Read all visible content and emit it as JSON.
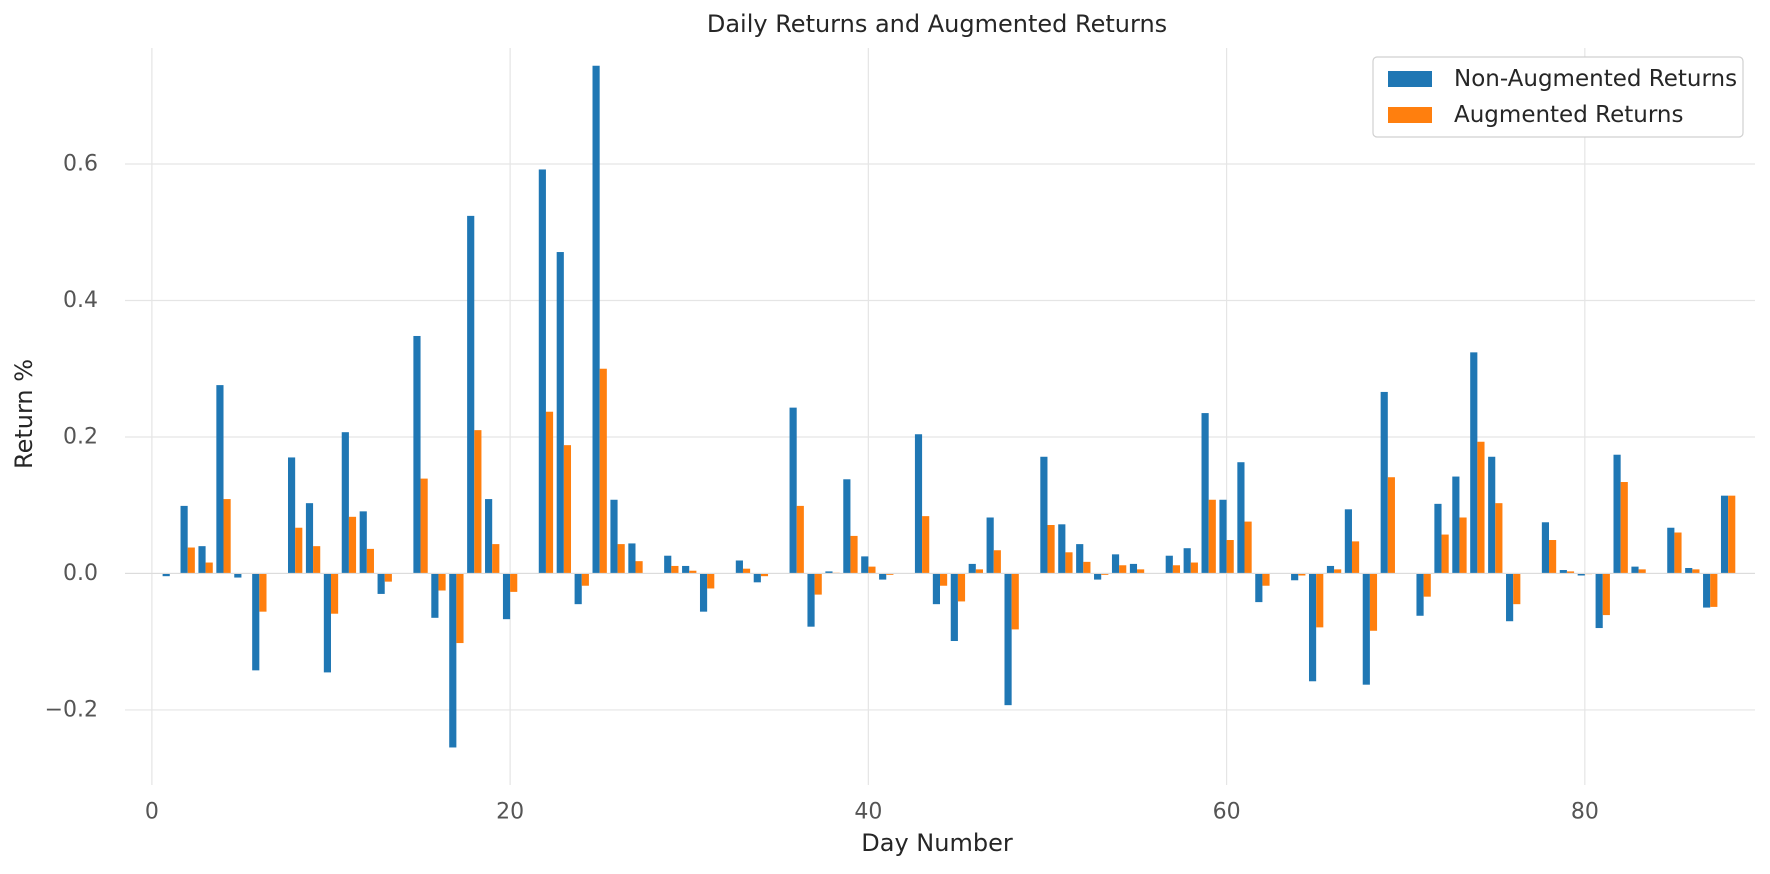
{
  "chart_data": {
    "type": "bar",
    "title": "Daily Returns and Augmented Returns",
    "xlabel": "Day Number",
    "ylabel": "Return %",
    "xlim": [
      -1.5,
      89.5
    ],
    "ylim": [
      -0.31,
      0.77
    ],
    "xticks": [
      0,
      20,
      40,
      60,
      80
    ],
    "yticks": [
      -0.2,
      0.0,
      0.2,
      0.4,
      0.6
    ],
    "ytick_labels": [
      "−0.2",
      "0.0",
      "0.2",
      "0.4",
      "0.6"
    ],
    "grid": true,
    "legend_position": "top-right",
    "colors": {
      "series_1": "#1f77b4",
      "series_2": "#ff7f0e",
      "grid": "#e5e5e5",
      "text": "#555555"
    },
    "x": [
      0,
      1,
      2,
      3,
      4,
      5,
      6,
      7,
      8,
      9,
      10,
      11,
      12,
      13,
      14,
      15,
      16,
      17,
      18,
      19,
      20,
      21,
      22,
      23,
      24,
      25,
      26,
      27,
      28,
      29,
      30,
      31,
      32,
      33,
      34,
      35,
      36,
      37,
      38,
      39,
      40,
      41,
      42,
      43,
      44,
      45,
      46,
      47,
      48,
      49,
      50,
      51,
      52,
      53,
      54,
      55,
      56,
      57,
      58,
      59,
      60,
      61,
      62,
      63,
      64,
      65,
      66,
      67,
      68,
      69,
      70,
      71,
      72,
      73,
      74,
      75,
      76,
      77,
      78,
      79,
      80,
      81,
      82,
      83,
      84,
      85,
      86,
      87,
      88
    ],
    "series": [
      {
        "name": "Non-Augmented Returns",
        "color": "#1f77b4",
        "values": [
          0.0,
          -0.004,
          0.099,
          0.04,
          0.276,
          -0.006,
          -0.142,
          0.0,
          0.17,
          0.103,
          -0.145,
          0.207,
          0.091,
          -0.03,
          0.0,
          0.348,
          -0.065,
          -0.255,
          0.524,
          0.109,
          -0.067,
          0.0,
          0.592,
          0.471,
          -0.045,
          0.744,
          0.108,
          0.044,
          0.0,
          0.026,
          0.011,
          -0.056,
          0.0,
          0.019,
          -0.013,
          0.0,
          0.243,
          -0.078,
          0.003,
          0.138,
          0.025,
          -0.009,
          0.0,
          0.204,
          -0.045,
          -0.099,
          0.014,
          0.082,
          -0.193,
          0.0,
          0.171,
          0.072,
          0.043,
          -0.009,
          0.028,
          0.014,
          0.0,
          0.026,
          0.037,
          0.235,
          0.108,
          0.163,
          -0.042,
          0.0,
          -0.01,
          -0.158,
          0.011,
          0.094,
          -0.163,
          0.266,
          0.0,
          -0.062,
          0.102,
          0.142,
          0.324,
          0.171,
          -0.07,
          0.0,
          0.075,
          0.005,
          -0.003,
          -0.08,
          0.174,
          0.01,
          0.0,
          0.067,
          0.008,
          -0.05,
          0.114
        ]
      },
      {
        "name": "Augmented Returns",
        "color": "#ff7f0e",
        "values": [
          0.0,
          0.0,
          0.038,
          0.016,
          0.109,
          0.0,
          -0.056,
          0.0,
          0.067,
          0.04,
          -0.059,
          0.083,
          0.036,
          -0.012,
          0.0,
          0.139,
          -0.025,
          -0.102,
          0.21,
          0.043,
          -0.027,
          0.0,
          0.237,
          0.188,
          -0.018,
          0.3,
          0.043,
          0.018,
          0.0,
          0.011,
          0.004,
          -0.022,
          0.0,
          0.007,
          -0.004,
          0.0,
          0.099,
          -0.031,
          0.001,
          0.055,
          0.01,
          -0.002,
          0.0,
          0.084,
          -0.018,
          -0.041,
          0.006,
          0.034,
          -0.082,
          0.0,
          0.071,
          0.031,
          0.017,
          -0.002,
          0.012,
          0.006,
          0.0,
          0.012,
          0.016,
          0.108,
          0.049,
          0.076,
          -0.018,
          0.0,
          -0.003,
          -0.079,
          0.006,
          0.047,
          -0.084,
          0.141,
          0.0,
          -0.034,
          0.057,
          0.082,
          0.193,
          0.103,
          -0.045,
          0.0,
          0.049,
          0.003,
          -0.001,
          -0.061,
          0.134,
          0.006,
          0.0,
          0.06,
          0.006,
          -0.049,
          0.114
        ]
      }
    ]
  }
}
